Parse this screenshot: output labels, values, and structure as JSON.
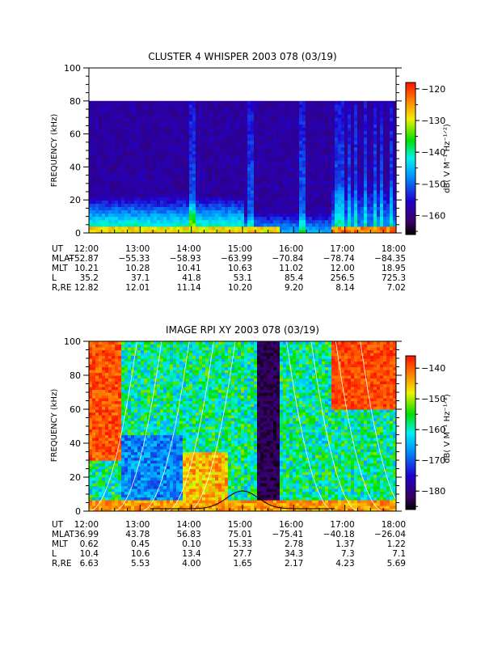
{
  "chart_data": [
    {
      "type": "heatmap",
      "title": "CLUSTER 4 WHISPER 2003 078 (03/19)",
      "ylabel": "FREQUENCY (kHz)",
      "ylim": [
        0,
        100
      ],
      "yticks": [
        0,
        20,
        40,
        60,
        80,
        100
      ],
      "data_top_khz": 80,
      "xlim": [
        "12:00",
        "18:00"
      ],
      "xticks": [
        "12:00",
        "13:00",
        "14:00",
        "15:00",
        "16:00",
        "17:00",
        "18:00"
      ],
      "colorbar": {
        "label": "dB( V M⁻¹ Hz⁻¹ᐟ²)",
        "range": [
          -166,
          -118
        ],
        "ticks": [
          -120,
          -130,
          -140,
          -150,
          -160
        ],
        "tick_labels": [
          "−120",
          "−130",
          "−140",
          "−150",
          "−160"
        ]
      },
      "ephemeris": {
        "labels": [
          "UT",
          "MLAT",
          "MLT",
          "L",
          "R,RE"
        ],
        "rows": [
          [
            "12:00",
            "13:00",
            "14:00",
            "15:00",
            "16:00",
            "17:00",
            "18:00"
          ],
          [
            "−52.87",
            "−55.33",
            "−58.93",
            "−63.99",
            "−70.84",
            "−78.74",
            "−84.35"
          ],
          [
            "10.21",
            "10.28",
            "10.41",
            "10.63",
            "11.02",
            "12.00",
            "18.95"
          ],
          [
            "35.2",
            "37.1",
            "41.8",
            "53.1",
            "85.4",
            "256.5",
            "725.3"
          ],
          [
            "12.82",
            "12.01",
            "11.14",
            "10.20",
            "9.20",
            "8.14",
            "7.02"
          ]
        ]
      }
    },
    {
      "type": "heatmap",
      "title": "IMAGE RPI XY 2003 078 (03/19)",
      "ylabel": "FREQUENCY (kHz)",
      "ylim": [
        0,
        100
      ],
      "yticks": [
        0,
        20,
        40,
        60,
        80,
        100
      ],
      "xlim": [
        "12:00",
        "18:00"
      ],
      "xticks": [
        "12:00",
        "13:00",
        "14:00",
        "15:00",
        "16:00",
        "17:00",
        "18:00"
      ],
      "colorbar": {
        "label": "dB( V M⁻¹ Hz⁻¹ᐟ²)",
        "range": [
          -186,
          -136
        ],
        "ticks": [
          -140,
          -150,
          -160,
          -170,
          -180
        ],
        "tick_labels": [
          "−140",
          "−150",
          "−160",
          "−170",
          "−180"
        ]
      },
      "ephemeris": {
        "labels": [
          "UT",
          "MLAT",
          "MLT",
          "L",
          "R,RE"
        ],
        "rows": [
          [
            "12:00",
            "13:00",
            "14:00",
            "15:00",
            "16:00",
            "17:00",
            "18:00"
          ],
          [
            "36.99",
            "43.78",
            "56.83",
            "75.01",
            "−75.41",
            "−40.18",
            "−26.04"
          ],
          [
            "0.62",
            "0.45",
            "0.10",
            "15.33",
            "2.78",
            "1.37",
            "1.22"
          ],
          [
            "10.4",
            "10.6",
            "13.4",
            "27.7",
            "34.3",
            "7.3",
            "7.1"
          ],
          [
            "6.63",
            "5.53",
            "4.00",
            "1.65",
            "2.17",
            "4.23",
            "5.69"
          ]
        ]
      }
    }
  ]
}
